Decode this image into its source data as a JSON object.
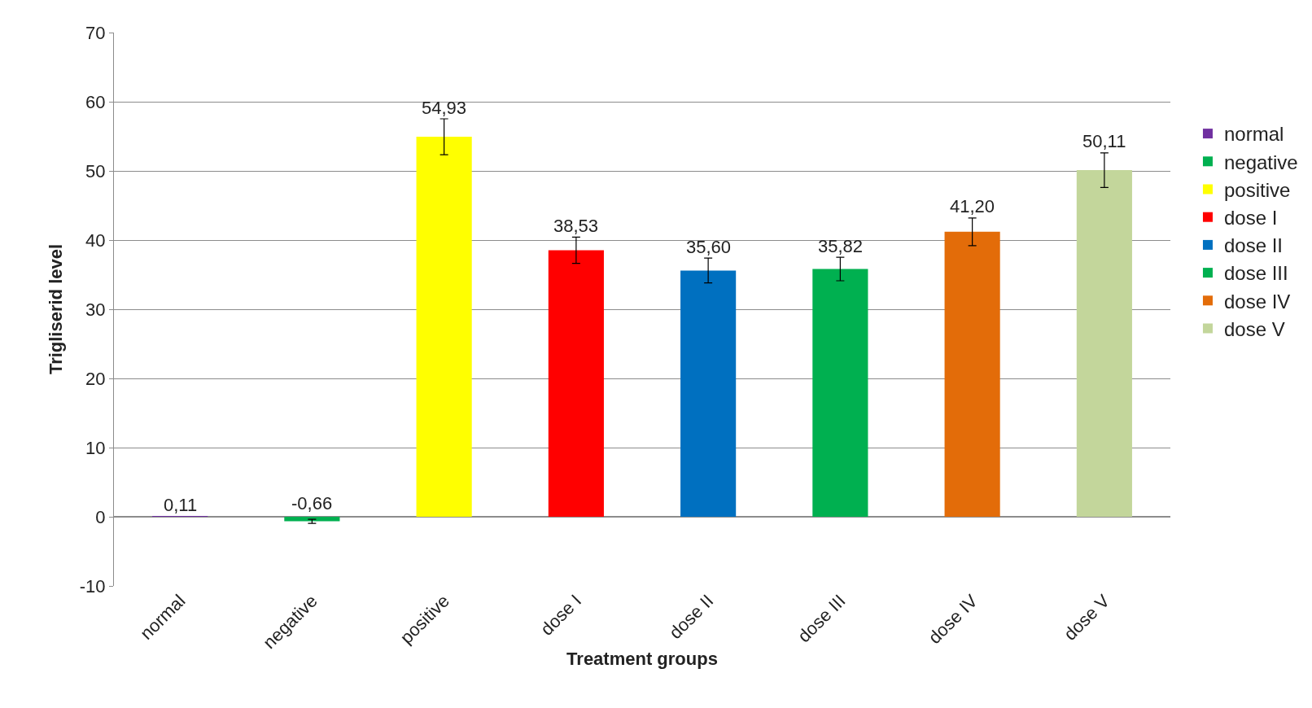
{
  "chart_data": {
    "type": "bar",
    "xlabel": "Treatment groups",
    "ylabel": "Trigliserid level",
    "categories": [
      "normal",
      "negative",
      "positive",
      "dose I",
      "dose II",
      "dose III",
      "dose IV",
      "dose V"
    ],
    "series": [
      {
        "name": "normal",
        "color": "#7030a0",
        "values": [
          0.11,
          null,
          null,
          null,
          null,
          null,
          null,
          null
        ],
        "value_labels": [
          "0,11",
          null,
          null,
          null,
          null,
          null,
          null,
          null
        ]
      },
      {
        "name": "negative",
        "color": "#00b050",
        "values": [
          null,
          -0.66,
          null,
          null,
          null,
          null,
          null,
          null
        ],
        "errors": [
          null,
          0.3,
          null,
          null,
          null,
          null,
          null,
          null
        ],
        "value_labels": [
          null,
          "-0,66",
          null,
          null,
          null,
          null,
          null,
          null
        ]
      },
      {
        "name": "positive",
        "color": "#ffff00",
        "values": [
          null,
          null,
          54.93,
          null,
          null,
          null,
          null,
          null
        ],
        "errors": [
          null,
          null,
          2.6,
          null,
          null,
          null,
          null,
          null
        ],
        "value_labels": [
          null,
          null,
          "54,93",
          null,
          null,
          null,
          null,
          null
        ]
      },
      {
        "name": "dose I",
        "color": "#ff0000",
        "values": [
          null,
          null,
          null,
          38.53,
          null,
          null,
          null,
          null
        ],
        "errors": [
          null,
          null,
          null,
          1.9,
          null,
          null,
          null,
          null
        ],
        "value_labels": [
          null,
          null,
          null,
          "38,53",
          null,
          null,
          null,
          null
        ]
      },
      {
        "name": "dose II",
        "color": "#0070c0",
        "values": [
          null,
          null,
          null,
          null,
          35.6,
          null,
          null,
          null
        ],
        "errors": [
          null,
          null,
          null,
          null,
          1.8,
          null,
          null,
          null
        ],
        "value_labels": [
          null,
          null,
          null,
          null,
          "35,60",
          null,
          null,
          null
        ]
      },
      {
        "name": "dose III",
        "color": "#00b050",
        "values": [
          null,
          null,
          null,
          null,
          null,
          35.82,
          null,
          null
        ],
        "errors": [
          null,
          null,
          null,
          null,
          null,
          1.7,
          null,
          null
        ],
        "value_labels": [
          null,
          null,
          null,
          null,
          null,
          "35,82",
          null,
          null
        ]
      },
      {
        "name": "dose IV",
        "color": "#e36c09",
        "values": [
          null,
          null,
          null,
          null,
          null,
          null,
          41.2,
          null
        ],
        "errors": [
          null,
          null,
          null,
          null,
          null,
          null,
          2.0,
          null
        ],
        "value_labels": [
          null,
          null,
          null,
          null,
          null,
          null,
          "41,20",
          null
        ]
      },
      {
        "name": "dose V",
        "color": "#c3d69b",
        "values": [
          null,
          null,
          null,
          null,
          null,
          null,
          null,
          50.11
        ],
        "errors": [
          null,
          null,
          null,
          null,
          null,
          null,
          null,
          2.5
        ],
        "value_labels": [
          null,
          null,
          null,
          null,
          null,
          null,
          null,
          "50,11"
        ]
      }
    ],
    "ylim": [
      -10,
      70
    ],
    "yticks": [
      -10,
      0,
      10,
      20,
      30,
      40,
      50,
      60,
      70
    ],
    "grid": "y",
    "legend": "right"
  }
}
